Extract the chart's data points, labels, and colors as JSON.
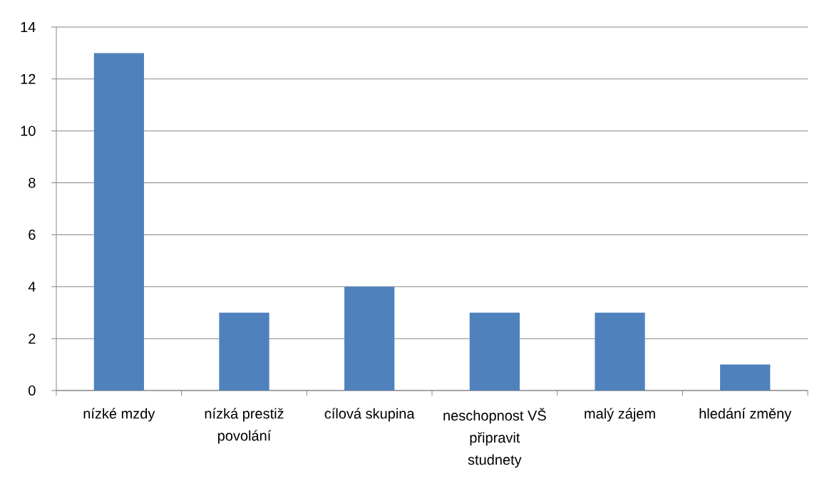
{
  "chart_data": {
    "type": "bar",
    "categories": [
      "nízké mzdy",
      "nízká prestiž povolání",
      "cílová skupina",
      "neschopnost VŠ připravit studnety",
      "malý zájem",
      "hledání změny"
    ],
    "values": [
      13,
      3,
      4,
      3,
      3,
      1
    ],
    "color": "#4f81bd",
    "ylim": [
      0,
      14
    ],
    "yticks": [
      0,
      2,
      4,
      6,
      8,
      10,
      12,
      14
    ],
    "grid": "y"
  }
}
